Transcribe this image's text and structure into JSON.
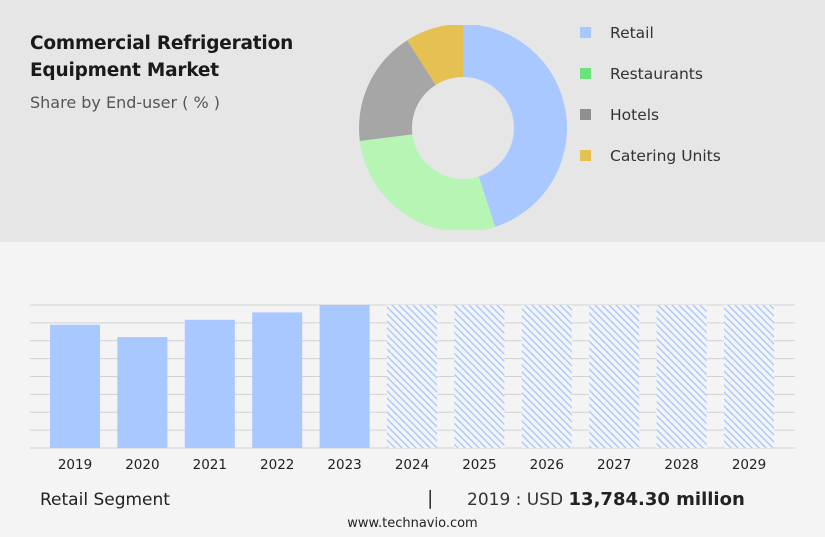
{
  "title": "Commercial Refrigeration Equipment Market",
  "subtitle": "Share by End-user ( % )",
  "colors": {
    "retail": "#a8c8ff",
    "restaurants": "#b7f5b5",
    "hotels": "#a6a6a6",
    "catering_units": "#e5c052",
    "legend_restaurants": "#6ee27a",
    "legend_hotels": "#8f8f8f"
  },
  "legend": [
    {
      "label": "Retail",
      "color": "#a8c8ff"
    },
    {
      "label": "Restaurants",
      "color": "#6ee27a"
    },
    {
      "label": "Hotels",
      "color": "#8f8f8f"
    },
    {
      "label": "Catering Units",
      "color": "#e5c052"
    }
  ],
  "footer": {
    "segment_label": "Retail Segment",
    "separator": "|",
    "value_prefix": "2019 : USD ",
    "value_amount": "13,784.30 million"
  },
  "source": "www.technavio.com",
  "chart_data": [
    {
      "type": "pie",
      "variant": "donut",
      "categories": [
        "Retail",
        "Restaurants",
        "Hotels",
        "Catering Units"
      ],
      "values": [
        45,
        28,
        18,
        9
      ],
      "colors": [
        "#a8c8ff",
        "#b7f5b5",
        "#a6a6a6",
        "#e5c052"
      ]
    },
    {
      "type": "bar",
      "categories": [
        "2019",
        "2020",
        "2021",
        "2022",
        "2023",
        "2024",
        "2025",
        "2026",
        "2027",
        "2028",
        "2029"
      ],
      "values": [
        100,
        90,
        104,
        110,
        116,
        null,
        null,
        null,
        null,
        null,
        null
      ],
      "forecast": [
        false,
        false,
        false,
        false,
        false,
        true,
        true,
        true,
        true,
        true,
        true
      ],
      "forecast_value": 116,
      "ylim": [
        0,
        116
      ],
      "grid": true,
      "color": "#a8c8ff"
    }
  ]
}
